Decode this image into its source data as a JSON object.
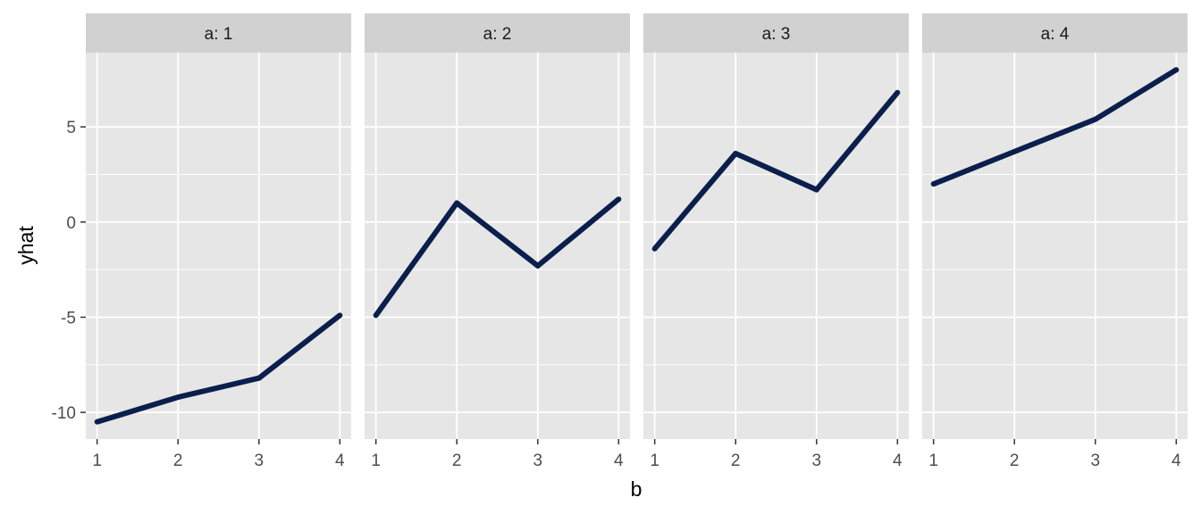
{
  "chart_data": {
    "type": "line",
    "xlabel": "b",
    "ylabel": "yhat",
    "x": [
      1,
      2,
      3,
      4
    ],
    "x_ticks": [
      1,
      2,
      3,
      4
    ],
    "y_ticks": [
      -10,
      -5,
      0,
      5
    ],
    "y_tick_labels": [
      "-10",
      "-5",
      "0",
      "5"
    ],
    "xlim": [
      0.86,
      4.14
    ],
    "ylim": [
      -11.4,
      8.9
    ],
    "grid": true,
    "facet_strip_prefix": "a: ",
    "facets": [
      {
        "label": "a: 1",
        "values": [
          -10.5,
          -9.2,
          -8.2,
          -4.9
        ]
      },
      {
        "label": "a: 2",
        "values": [
          -4.9,
          1.0,
          -2.3,
          1.2
        ]
      },
      {
        "label": "a: 3",
        "values": [
          -1.4,
          3.6,
          1.7,
          6.8
        ]
      },
      {
        "label": "a: 4",
        "values": [
          2.0,
          3.7,
          5.4,
          8.0
        ]
      }
    ],
    "colors": {
      "line": "#0b1f4d",
      "panel_bg": "#e6e6e6",
      "strip_bg": "#d1d1d1",
      "grid": "#ffffff",
      "tick": "#333333"
    }
  }
}
